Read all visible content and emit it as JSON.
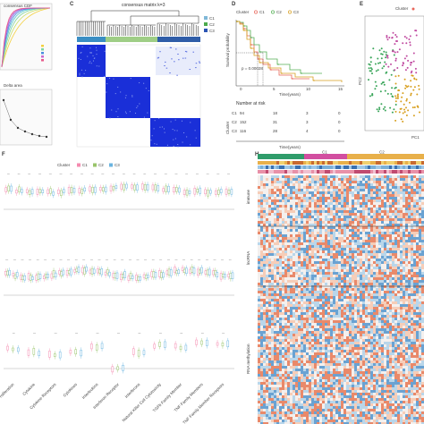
{
  "figure": {
    "panels": [
      {
        "id": "A",
        "label": "",
        "text": [
          "consensus CDF",
          "Delta area"
        ]
      },
      {
        "id": "C",
        "label": "C",
        "title": "consensus matrix k=3",
        "legend": [
          "C1",
          "C2",
          "C3"
        ]
      },
      {
        "id": "D",
        "label": "D",
        "legend_title": "Cluster",
        "legend": [
          "C1",
          "C2",
          "C3"
        ],
        "ylabel": "Survival probability",
        "xlabel": "Time(years)",
        "pvalue": "p = 0.00028",
        "xticks": [
          "0",
          "5",
          "10",
          "15"
        ],
        "risk_title": "Number at risk",
        "risk_rows": [
          {
            "name": "C1",
            "values": [
              "94",
              "18",
              "3",
              "0"
            ]
          },
          {
            "name": "C2",
            "values": [
              "152",
              "31",
              "3",
              "0"
            ]
          },
          {
            "name": "C3",
            "values": [
              "116",
              "28",
              "4",
              "0"
            ]
          }
        ]
      },
      {
        "id": "E",
        "label": "E",
        "legend_title": "Cluster",
        "ylabel": "PC2",
        "xlabel": "PC1"
      },
      {
        "id": "F",
        "label": "F",
        "legend_title": "Cluster",
        "legend": [
          "C1",
          "C2",
          "C3"
        ]
      },
      {
        "id": "G",
        "label": "",
        "row_labels": [
          "Cell Proliferation",
          "Cytokine",
          "Cytokine Receptors",
          "Cytokines",
          "Interleukins",
          "Interferon Receptor",
          "Interferons",
          "Natural Killer Cell Cytotoxicity",
          "TGFb Family Member",
          "TNF Family Members",
          "TNF Family Member Receptors"
        ]
      },
      {
        "id": "H",
        "label": "H",
        "group_labels": [
          "C1",
          "C2"
        ],
        "side_labels": [
          "immune",
          "lncRNA",
          "RNA methylation"
        ]
      }
    ]
  },
  "colors": {
    "c1": "#7fb8d8",
    "c2": "#4caa4c",
    "c3": "#2a54b4",
    "consensus": "#1a2fd8",
    "c1_red": "#e8665a",
    "c2_green": "#55b055",
    "c3_gold": "#d8a020"
  }
}
